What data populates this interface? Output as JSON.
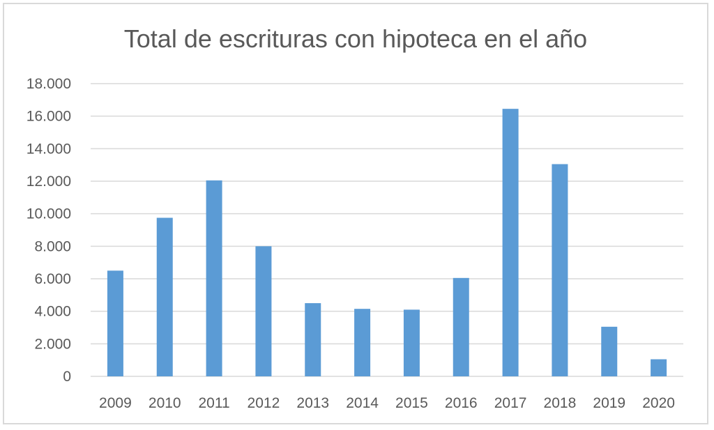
{
  "chart_data": {
    "type": "bar",
    "title": "Total de escrituras con hipoteca en el año",
    "xlabel": "",
    "ylabel": "",
    "categories": [
      "2009",
      "2010",
      "2011",
      "2012",
      "2013",
      "2014",
      "2015",
      "2016",
      "2017",
      "2018",
      "2019",
      "2020"
    ],
    "values": [
      6500,
      9750,
      12050,
      8000,
      4500,
      4150,
      4100,
      6050,
      16450,
      13050,
      3050,
      1050
    ],
    "ylim": [
      0,
      18000
    ],
    "yticks": [
      0,
      2000,
      4000,
      6000,
      8000,
      10000,
      12000,
      14000,
      16000,
      18000
    ],
    "ytick_labels": [
      "0",
      "2.000",
      "4.000",
      "6.000",
      "8.000",
      "10.000",
      "12.000",
      "14.000",
      "16.000",
      "18.000"
    ],
    "grid": true,
    "legend": "none",
    "bar_color": "#5b9bd5",
    "grid_color": "#d9d9d9",
    "text_color": "#595959"
  }
}
